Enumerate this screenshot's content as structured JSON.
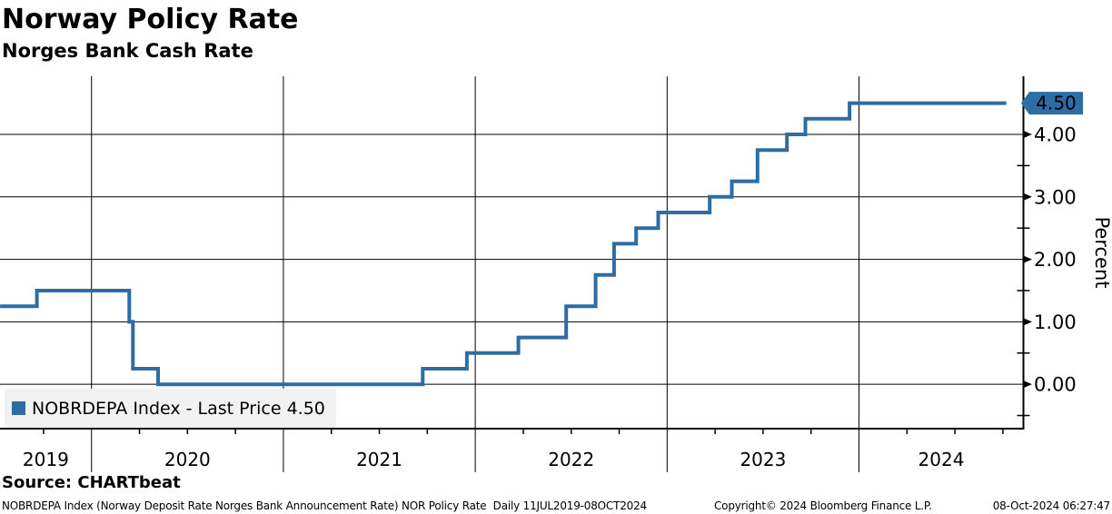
{
  "header": {
    "title": "Norway Policy Rate",
    "subtitle": "Norges Bank Cash Rate"
  },
  "legend": {
    "label": "NOBRDEPA Index - Last Price 4.50"
  },
  "source": {
    "label": "Source: CHARTbeat"
  },
  "footer": {
    "left": "NOBRDEPA Index (Norway Deposit Rate Norges Bank Announcement Rate) NOR Policy Rate  Daily 11JUL2019-08OCT2024",
    "center": "Copyright© 2024 Bloomberg Finance L.P.",
    "right": "08-Oct-2024 06:27:47"
  },
  "colors": {
    "line": "#2d6ca4",
    "tag_bg": "#2d6ca4",
    "tag_text": "#ffffff",
    "legend_bg": "#f2f2f2",
    "axis": "#000000",
    "grid": "#000000"
  },
  "chart_data": {
    "type": "line",
    "step": true,
    "title": "Norway Policy Rate",
    "subtitle": "Norges Bank Cash Rate",
    "ylabel": "Percent",
    "grid": true,
    "legend_position": "bottom-left",
    "last_price_label": "4.50",
    "xlim_decimal_years": [
      2019.523,
      2024.857
    ],
    "ylim": [
      -0.71,
      4.93
    ],
    "yticks": [
      {
        "value": 0,
        "label": "0.00"
      },
      {
        "value": 1,
        "label": "1.00"
      },
      {
        "value": 2,
        "label": "2.00"
      },
      {
        "value": 3,
        "label": "3.00"
      },
      {
        "value": 4,
        "label": "4.00"
      }
    ],
    "ytick_minor_values": [
      -0.5,
      0.5,
      1.5,
      2.5,
      3.5
    ],
    "x_minor_tick_interval_years": 0.25,
    "xtick_years": [
      {
        "year": 2019,
        "label": "2019"
      },
      {
        "year": 2020,
        "label": "2020"
      },
      {
        "year": 2021,
        "label": "2021"
      },
      {
        "year": 2022,
        "label": "2022"
      },
      {
        "year": 2023,
        "label": "2023"
      },
      {
        "year": 2024,
        "label": "2024"
      }
    ],
    "series": [
      {
        "name": "NOBRDEPA Index",
        "legend_label": "NOBRDEPA Index - Last Price 4.50",
        "color": "#2d6ca4",
        "last_price": 4.5,
        "end_date": "2024-10-08",
        "points": [
          [
            "2019-07-11",
            1.25
          ],
          [
            "2019-09-19",
            1.5
          ],
          [
            "2020-03-13",
            1.0
          ],
          [
            "2020-03-20",
            0.25
          ],
          [
            "2020-05-07",
            0.0
          ],
          [
            "2021-09-23",
            0.25
          ],
          [
            "2021-12-16",
            0.5
          ],
          [
            "2022-03-24",
            0.75
          ],
          [
            "2022-06-23",
            1.25
          ],
          [
            "2022-08-18",
            1.75
          ],
          [
            "2022-09-22",
            2.25
          ],
          [
            "2022-11-03",
            2.5
          ],
          [
            "2022-12-15",
            2.75
          ],
          [
            "2023-03-23",
            3.0
          ],
          [
            "2023-05-04",
            3.25
          ],
          [
            "2023-06-22",
            3.75
          ],
          [
            "2023-08-17",
            4.0
          ],
          [
            "2023-09-21",
            4.25
          ],
          [
            "2023-12-14",
            4.5
          ]
        ]
      }
    ]
  }
}
